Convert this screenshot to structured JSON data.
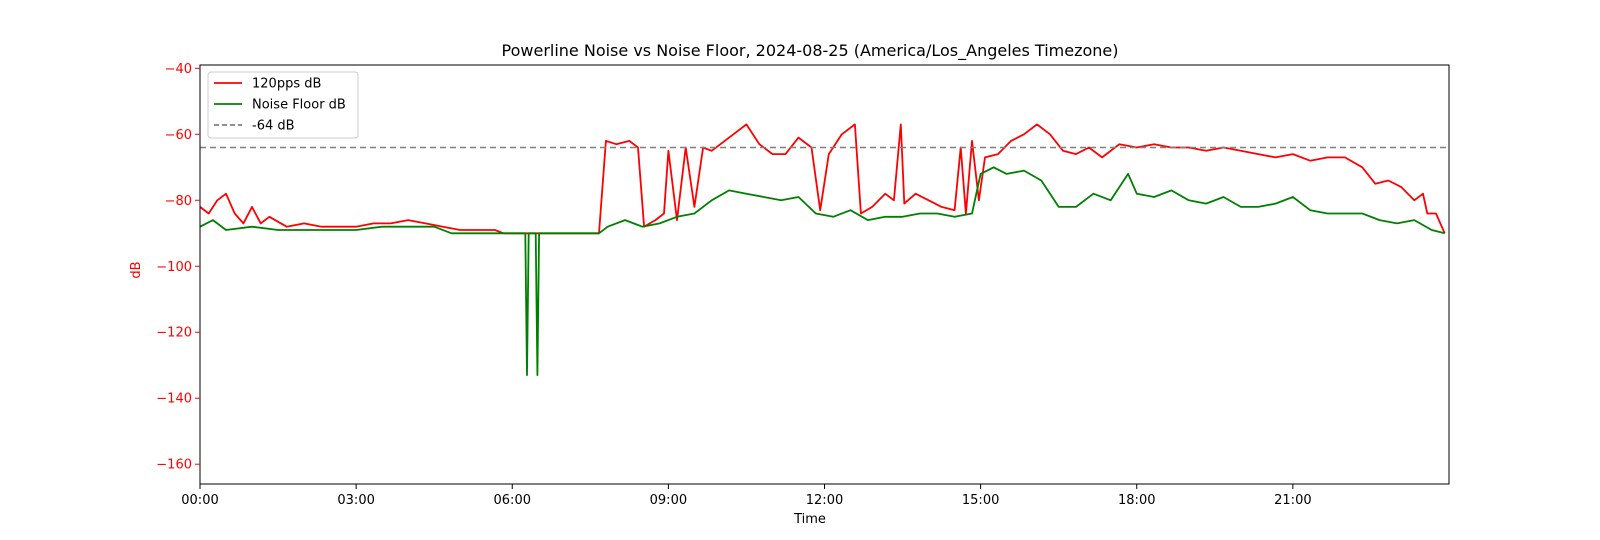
{
  "chart_data": {
    "type": "line",
    "title": "Powerline Noise vs Noise Floor, 2024-08-25 (America/Los_Angeles Timezone)",
    "xlabel": "Time",
    "ylabel": "dB",
    "xlim": [
      "00:00",
      "24:00"
    ],
    "ylim": [
      -166,
      -39
    ],
    "x_ticks": [
      "00:00",
      "03:00",
      "06:00",
      "09:00",
      "12:00",
      "15:00",
      "18:00",
      "21:00"
    ],
    "y_ticks": [
      -40,
      -60,
      -80,
      -100,
      -120,
      -140,
      -160
    ],
    "y_tick_labels": [
      "−40",
      "−60",
      "−80",
      "−100",
      "−120",
      "−140",
      "−160"
    ],
    "legend_position": "upper-left",
    "series": [
      {
        "name": "120pps dB",
        "color": "#ff0000",
        "points": [
          [
            "00:00",
            -82
          ],
          [
            "00:10",
            -84
          ],
          [
            "00:20",
            -80
          ],
          [
            "00:30",
            -78
          ],
          [
            "00:40",
            -84
          ],
          [
            "00:50",
            -87
          ],
          [
            "01:00",
            -82
          ],
          [
            "01:10",
            -87
          ],
          [
            "01:20",
            -85
          ],
          [
            "01:40",
            -88
          ],
          [
            "02:00",
            -87
          ],
          [
            "02:20",
            -88
          ],
          [
            "02:40",
            -88
          ],
          [
            "03:00",
            -88
          ],
          [
            "03:20",
            -87
          ],
          [
            "03:40",
            -87
          ],
          [
            "04:00",
            -86
          ],
          [
            "04:20",
            -87
          ],
          [
            "04:40",
            -88
          ],
          [
            "05:00",
            -89
          ],
          [
            "05:20",
            -89
          ],
          [
            "05:40",
            -89
          ],
          [
            "05:50",
            -90
          ],
          [
            "06:30",
            -90
          ],
          [
            "07:00",
            -90
          ],
          [
            "07:40",
            -90
          ],
          [
            "07:48",
            -62
          ],
          [
            "08:00",
            -63
          ],
          [
            "08:15",
            -62
          ],
          [
            "08:25",
            -64
          ],
          [
            "08:32",
            -88
          ],
          [
            "08:45",
            -86
          ],
          [
            "08:55",
            -84
          ],
          [
            "09:00",
            -65
          ],
          [
            "09:10",
            -86
          ],
          [
            "09:20",
            -64
          ],
          [
            "09:30",
            -82
          ],
          [
            "09:40",
            -64
          ],
          [
            "09:50",
            -65
          ],
          [
            "10:00",
            -63
          ],
          [
            "10:15",
            -60
          ],
          [
            "10:30",
            -57
          ],
          [
            "10:45",
            -63
          ],
          [
            "11:00",
            -66
          ],
          [
            "11:15",
            -66
          ],
          [
            "11:30",
            -61
          ],
          [
            "11:45",
            -64
          ],
          [
            "11:55",
            -83
          ],
          [
            "12:05",
            -66
          ],
          [
            "12:20",
            -60
          ],
          [
            "12:35",
            -57
          ],
          [
            "12:42",
            -84
          ],
          [
            "12:55",
            -82
          ],
          [
            "13:10",
            -78
          ],
          [
            "13:20",
            -80
          ],
          [
            "13:28",
            -57
          ],
          [
            "13:32",
            -81
          ],
          [
            "13:45",
            -78
          ],
          [
            "14:00",
            -80
          ],
          [
            "14:15",
            -82
          ],
          [
            "14:30",
            -83
          ],
          [
            "14:37",
            -64
          ],
          [
            "14:43",
            -84
          ],
          [
            "14:50",
            -62
          ],
          [
            "14:58",
            -80
          ],
          [
            "15:05",
            -67
          ],
          [
            "15:20",
            -66
          ],
          [
            "15:35",
            -62
          ],
          [
            "15:50",
            -60
          ],
          [
            "16:05",
            -57
          ],
          [
            "16:20",
            -60
          ],
          [
            "16:35",
            -65
          ],
          [
            "16:50",
            -66
          ],
          [
            "17:05",
            -64
          ],
          [
            "17:20",
            -67
          ],
          [
            "17:40",
            -63
          ],
          [
            "18:00",
            -64
          ],
          [
            "18:20",
            -63
          ],
          [
            "18:40",
            -64
          ],
          [
            "19:00",
            -64
          ],
          [
            "19:20",
            -65
          ],
          [
            "19:40",
            -64
          ],
          [
            "20:00",
            -65
          ],
          [
            "20:20",
            -66
          ],
          [
            "20:40",
            -67
          ],
          [
            "21:00",
            -66
          ],
          [
            "21:20",
            -68
          ],
          [
            "21:40",
            -67
          ],
          [
            "22:00",
            -67
          ],
          [
            "22:20",
            -70
          ],
          [
            "22:35",
            -75
          ],
          [
            "22:50",
            -74
          ],
          [
            "23:05",
            -76
          ],
          [
            "23:20",
            -80
          ],
          [
            "23:30",
            -78
          ],
          [
            "23:35",
            -84
          ],
          [
            "23:45",
            -84
          ],
          [
            "23:55",
            -90
          ]
        ]
      },
      {
        "name": "Noise Floor dB",
        "color": "#008000",
        "points": [
          [
            "00:00",
            -88
          ],
          [
            "00:15",
            -86
          ],
          [
            "00:30",
            -89
          ],
          [
            "01:00",
            -88
          ],
          [
            "01:30",
            -89
          ],
          [
            "02:00",
            -89
          ],
          [
            "02:30",
            -89
          ],
          [
            "03:00",
            -89
          ],
          [
            "03:30",
            -88
          ],
          [
            "04:00",
            -88
          ],
          [
            "04:30",
            -88
          ],
          [
            "04:50",
            -90
          ],
          [
            "06:15",
            -90
          ],
          [
            "06:17",
            -133
          ],
          [
            "06:19",
            -90
          ],
          [
            "06:27",
            -90
          ],
          [
            "06:29",
            -133
          ],
          [
            "06:31",
            -90
          ],
          [
            "07:40",
            -90
          ],
          [
            "07:50",
            -88
          ],
          [
            "08:10",
            -86
          ],
          [
            "08:30",
            -88
          ],
          [
            "08:50",
            -87
          ],
          [
            "09:10",
            -85
          ],
          [
            "09:30",
            -84
          ],
          [
            "09:50",
            -80
          ],
          [
            "10:10",
            -77
          ],
          [
            "10:30",
            -78
          ],
          [
            "10:50",
            -79
          ],
          [
            "11:10",
            -80
          ],
          [
            "11:30",
            -79
          ],
          [
            "11:50",
            -84
          ],
          [
            "12:10",
            -85
          ],
          [
            "12:30",
            -83
          ],
          [
            "12:50",
            -86
          ],
          [
            "13:10",
            -85
          ],
          [
            "13:30",
            -85
          ],
          [
            "13:50",
            -84
          ],
          [
            "14:10",
            -84
          ],
          [
            "14:30",
            -85
          ],
          [
            "14:50",
            -84
          ],
          [
            "15:00",
            -72
          ],
          [
            "15:15",
            -70
          ],
          [
            "15:30",
            -72
          ],
          [
            "15:50",
            -71
          ],
          [
            "16:10",
            -74
          ],
          [
            "16:30",
            -82
          ],
          [
            "16:50",
            -82
          ],
          [
            "17:10",
            -78
          ],
          [
            "17:30",
            -80
          ],
          [
            "17:50",
            -72
          ],
          [
            "18:00",
            -78
          ],
          [
            "18:20",
            -79
          ],
          [
            "18:40",
            -77
          ],
          [
            "19:00",
            -80
          ],
          [
            "19:20",
            -81
          ],
          [
            "19:40",
            -79
          ],
          [
            "20:00",
            -82
          ],
          [
            "20:20",
            -82
          ],
          [
            "20:40",
            -81
          ],
          [
            "21:00",
            -79
          ],
          [
            "21:20",
            -83
          ],
          [
            "21:40",
            -84
          ],
          [
            "22:00",
            -84
          ],
          [
            "22:20",
            -84
          ],
          [
            "22:40",
            -86
          ],
          [
            "23:00",
            -87
          ],
          [
            "23:20",
            -86
          ],
          [
            "23:40",
            -89
          ],
          [
            "23:55",
            -90
          ]
        ]
      },
      {
        "name": "-64 dB",
        "color": "#808080",
        "style": "dashed",
        "constant": -64
      }
    ]
  }
}
